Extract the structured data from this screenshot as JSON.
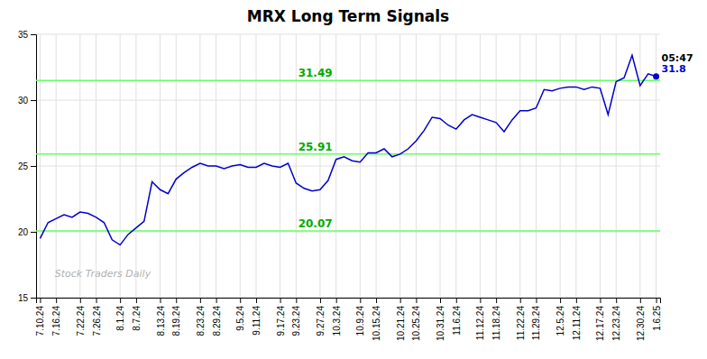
{
  "chart_data": {
    "type": "line",
    "title": "MRX Long Term Signals",
    "categories": [
      "7.10.24",
      null,
      "7.16.24",
      null,
      null,
      "7.22.24",
      null,
      "7.26.24",
      null,
      null,
      "8.1.24",
      null,
      "8.7.24",
      null,
      null,
      "8.13.24",
      null,
      "8.19.24",
      null,
      null,
      "8.23.24",
      null,
      "8.29.24",
      null,
      null,
      "9.5.24",
      null,
      "9.11.24",
      null,
      null,
      "9.17.24",
      null,
      "9.23.24",
      null,
      null,
      "9.27.24",
      null,
      "10.3.24",
      null,
      null,
      "10.9.24",
      null,
      "10.15.24",
      null,
      null,
      "10.21.24",
      null,
      "10.25.24",
      null,
      null,
      "10.31.24",
      null,
      "11.6.24",
      null,
      null,
      "11.12.24",
      null,
      "11.18.24",
      null,
      null,
      "11.22.24",
      null,
      "11.29.24",
      null,
      null,
      "12.5.24",
      null,
      "12.11.24",
      null,
      null,
      "12.17.24",
      null,
      "12.23.24",
      null,
      null,
      "12.30.24",
      null,
      "1.6.25"
    ],
    "values": [
      19.5,
      20.7,
      21.0,
      21.3,
      21.1,
      21.5,
      21.4,
      21.1,
      20.7,
      19.4,
      19.0,
      19.8,
      20.3,
      20.8,
      23.8,
      23.2,
      22.9,
      24.0,
      24.5,
      24.9,
      25.2,
      25.0,
      25.0,
      24.8,
      25.0,
      25.1,
      24.9,
      24.9,
      25.2,
      25.0,
      24.9,
      25.2,
      23.7,
      23.3,
      23.1,
      23.2,
      23.9,
      25.5,
      25.7,
      25.4,
      25.3,
      26.0,
      26.0,
      26.3,
      25.7,
      25.9,
      26.3,
      26.9,
      27.7,
      28.7,
      28.6,
      28.1,
      27.8,
      28.5,
      28.9,
      28.7,
      28.5,
      28.3,
      27.6,
      28.5,
      29.2,
      29.2,
      29.4,
      30.8,
      30.7,
      30.9,
      31.0,
      31.0,
      30.8,
      31.0,
      30.9,
      28.9,
      31.4,
      31.7,
      33.4,
      31.1,
      32.0,
      31.8
    ],
    "color": "#0000cc",
    "hlines": {
      "values": [
        20.07,
        25.91,
        31.49
      ],
      "color": "#66ff66",
      "label_color": "#00aa00",
      "data_labels": true
    },
    "last_point": {
      "value": 31.8,
      "time": "05:47",
      "color": "#0000cc"
    },
    "watermark": {
      "text": "Stock Traders Daily",
      "color": "#b0b0b0"
    },
    "ylim": [
      15,
      35
    ],
    "yticks": [
      15,
      20,
      25,
      30,
      35
    ],
    "grid": true
  }
}
